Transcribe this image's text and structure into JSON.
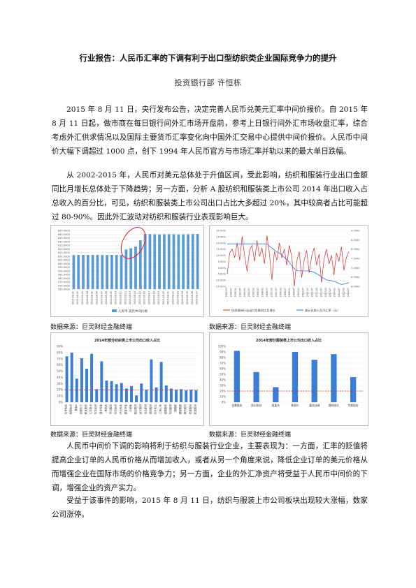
{
  "document": {
    "title": "行业报告：人民币汇率的下调有利于出口型纺织类企业国际竞争力的提升",
    "author": "投资银行部 许恒栋",
    "paragraphs": [
      "2015 年 8 月 11 日，央行发布公告，决定完善人民币兑美元汇率中间价报价。自 2015 年 8 月 11 日起，做市商在每日银行间外汇市场开盘前，参考上日银行间外汇市场收盘汇率，综合考虑外汇供求情况以及国际主要货币汇率变化向中国外汇交易中心提供中间价报价。人民币中间价大幅下调超过 1000 点，创下 1994 年人民币官方与市场汇率并轨以来的最大单日跌幅。",
      "从 2002-2015 年，人民币对美元总体处于升值区间，受此影响，纺织和服装行业出口金额同比月增长总体处于下降趋势；另一方面，分析 A 股纺织和服装类上市公司 2014 年出口收入占总收入的百分比，可见，纺织和服装类上市公司出口占比大多超过 20%，其中较高者占比可能超过 80-90%。因此外汇波动对纺织和服装行业表现影响巨大。",
      "人民币中间价下调的影响将利于纺织与服装行业企业，主要表现为：一方面，汇率的贬值将提高企业订单的人民币价格从而增加收入，或者从另一个角度来说，降低企业订单的美元价格从而增强企业在国际市场的价格竞争力；另一方面，企业的外汇净资产将受益于人民币中间价的下调，增强企业的资产实力。",
      "受益于该事件的影响，2015 年 8 月 11 日，纺织与服装上市公司板块出现较大涨幅，数家公司涨停。"
    ],
    "sources": [
      "数据来源：巨灵财经金融终端",
      "数据来源：巨灵财经金融终端",
      "数据来源：巨灵财经金融终端",
      "数据来源：巨灵财经金融终端"
    ]
  },
  "chart_data": [
    {
      "type": "bar",
      "categories": [
        "2015-08-01",
        "2015-08-02",
        "2015-08-03",
        "2015-08-04",
        "2015-08-05",
        "2015-08-06",
        "2015-08-07",
        "2015-08-08",
        "2015-08-09",
        "2015-08-10",
        "2015-08-11",
        "2015-08-12",
        "2015-08-13",
        "2015-08-14",
        "2015-08-15",
        "2015-08-16",
        "2015-08-17",
        "2015-08-18",
        "2015-08-19",
        "2015-08-20",
        "2015-08-21",
        "2015-08-22",
        "2015-08-23",
        "2015-08-24",
        "2015-08-25",
        "2015-08-26",
        "2015-08-27"
      ],
      "values": [
        611.5,
        611.6,
        611.6,
        611.6,
        611.6,
        611.6,
        611.6,
        611.6,
        611.6,
        611.6,
        611.6,
        619,
        620.8,
        623,
        631.5,
        640,
        640,
        639.7,
        639.6,
        639.8,
        639.8,
        639.8,
        639.6,
        639.6,
        639.8,
        640,
        640.2
      ],
      "yticks": [
        "565.0000",
        "570.0000",
        "575.0000",
        "580.0000",
        "585.0000",
        "590.0000",
        "595.0000",
        "600.0000",
        "605.0000",
        "610.0000",
        "615.0000",
        "620.0000",
        "625.0000",
        "630.0000",
        "635.0000",
        "640.0000",
        "645.0000"
      ],
      "ylim": [
        565,
        645
      ],
      "legend": "人民币 美元中间价格",
      "annotation": "red ellipse around the jump"
    },
    {
      "type": "line",
      "series": [
        {
          "name": "纺织服装行业出口金额同比月增长",
          "color": "#d62a2a",
          "axis": "left"
        },
        {
          "name": "美元兑换人民币汇率（元）",
          "color": "#3a73c8",
          "axis": "right"
        }
      ],
      "x_labels": [
        "2002-01",
        "2002-07",
        "2003-01",
        "2003-07",
        "2004-01",
        "2004-07",
        "2005-01",
        "2005-07",
        "2006-01",
        "2006-07",
        "2007-01",
        "2007-07",
        "2008-01",
        "2008-07",
        "2009-01",
        "2009-07",
        "2010-01",
        "2010-07",
        "2011-01",
        "2011-07",
        "2012-01",
        "2012-07",
        "2013-01",
        "2013-07",
        "2014-01",
        "2014-07",
        "2015-01",
        "2015-07"
      ],
      "left_ticks": [
        "30.00%",
        "25.00%",
        "20.00%",
        "15.00%",
        "10.00%",
        "5.00%",
        "0.00%",
        "-5.00%",
        "-10.00%",
        "-15.00%"
      ],
      "right_ticks": [
        "9.0000",
        "8.5000",
        "8.0000",
        "7.5000",
        "7.0000",
        "6.5000",
        "6.0000"
      ],
      "left_ylim": [
        -15,
        30
      ],
      "right_ylim": [
        6,
        9
      ],
      "red_values": [
        -5,
        12,
        15,
        8,
        20,
        6,
        25,
        10,
        -3,
        14,
        18,
        5,
        22,
        9,
        16,
        3,
        26,
        11,
        -10,
        13,
        6,
        20,
        8,
        15,
        2,
        18,
        9,
        -15,
        5,
        13,
        -8,
        6,
        14,
        -4,
        9,
        16,
        2,
        11,
        -12,
        7,
        15,
        3,
        10,
        -6,
        12,
        5,
        17,
        -2,
        8,
        13
      ],
      "blue_values": [
        8.28,
        8.28,
        8.28,
        8.28,
        8.28,
        8.28,
        8.28,
        8.28,
        8.28,
        8.28,
        8.28,
        8.28,
        8.28,
        8.28,
        8.28,
        8.28,
        8.28,
        8.15,
        8.05,
        7.95,
        7.85,
        7.78,
        7.68,
        7.55,
        7.45,
        7.3,
        7.1,
        6.95,
        6.84,
        6.83,
        6.83,
        6.83,
        6.83,
        6.82,
        6.8,
        6.75,
        6.68,
        6.6,
        6.5,
        6.42,
        6.35,
        6.31,
        6.3,
        6.27,
        6.22,
        6.15,
        6.1,
        6.12,
        6.16,
        6.2
      ]
    },
    {
      "type": "bar",
      "title": "2014年部分纺织类上市公司出口收入占比",
      "categories": [
        "华孚色纺",
        "新野纺织",
        "鲁泰A",
        "百隆东方",
        "联发股份",
        "江苏阳光",
        "华芳纺织",
        "澳洋科技",
        "美欣达",
        "孚日股份",
        "凤竹纺织",
        "兴业科技",
        "霞客环保",
        "三房巷",
        "航民股份",
        "龙头股份",
        "台华新材",
        "南纺股份",
        "开开实业",
        "上海三毛",
        "金鹰股份",
        "华纺股份",
        "康赛妮",
        "健盛集团",
        "棒杰股份",
        "伟星股份",
        "新澳股份"
      ],
      "values": [
        74,
        80,
        38,
        71,
        54,
        78,
        21,
        66,
        35,
        34,
        29,
        31,
        22,
        26,
        11,
        30,
        20,
        69,
        24,
        65,
        27,
        22,
        20,
        21,
        19,
        20,
        19
      ],
      "yticks": [
        "0%",
        "10%",
        "20%",
        "30%",
        "40%",
        "50%",
        "60%",
        "70%",
        "80%",
        "90%"
      ],
      "ylim": [
        0,
        90
      ],
      "reference_line": 20,
      "color": "#3a7dd6"
    },
    {
      "type": "bar",
      "title": "2014年部分服装类上市公司出口收入占比",
      "categories": [
        "金鹰股份",
        "凯乐股份",
        "报喜鸟",
        "希努尔",
        "嘉欣丝绸",
        "晨鸣纸业",
        "华斯股份"
      ],
      "values": [
        92,
        54,
        27,
        90,
        76,
        86,
        45
      ],
      "yticks": [
        "0%",
        "10%",
        "20%",
        "30%",
        "40%",
        "50%",
        "60%",
        "70%",
        "80%",
        "90%",
        "100%"
      ],
      "ylim": [
        0,
        100
      ],
      "reference_line": 20,
      "color": "#3a7dd6"
    }
  ]
}
